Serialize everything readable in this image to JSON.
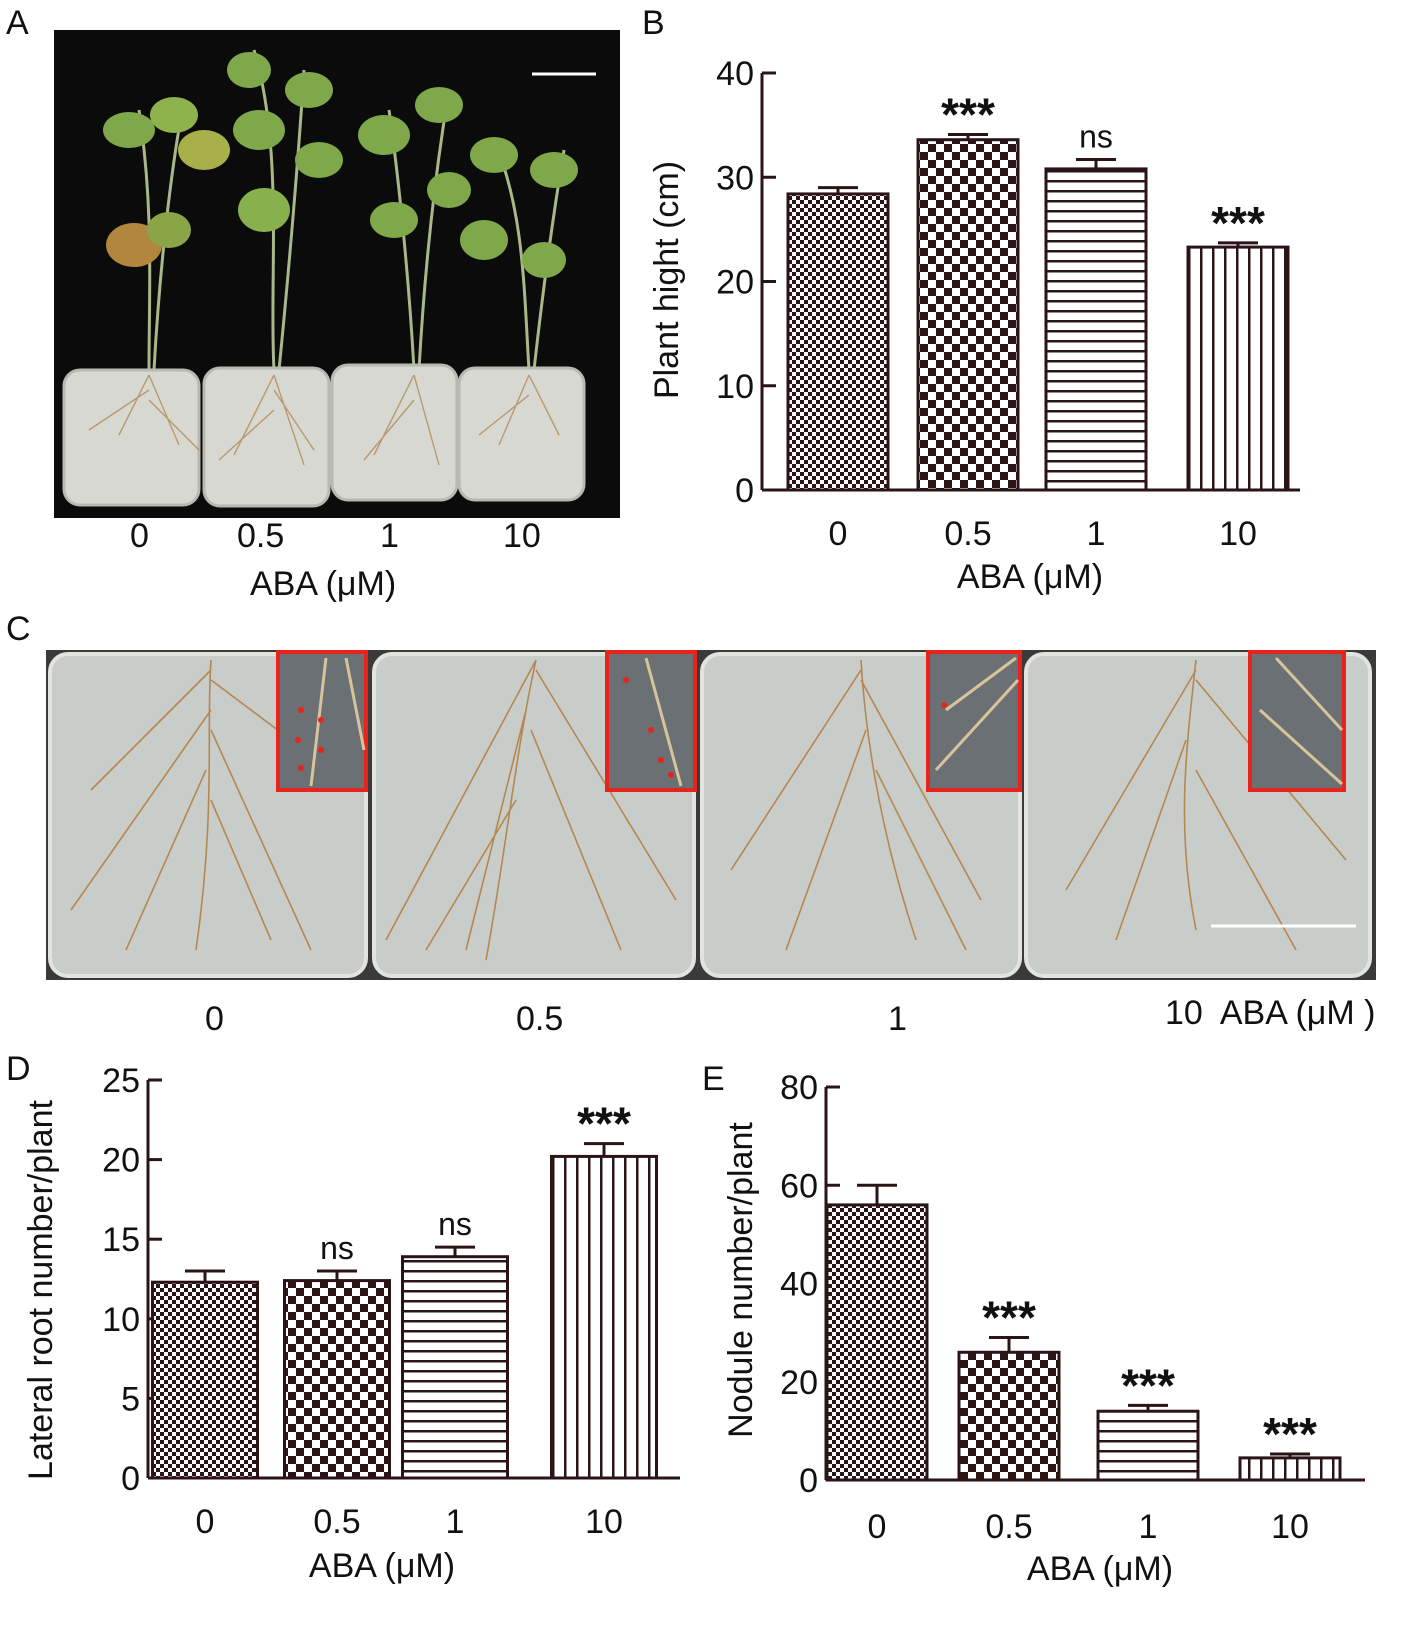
{
  "panel_letters": [
    "A",
    "B",
    "C",
    "D",
    "E"
  ],
  "panel_a": {
    "tick_labels": [
      "0",
      "0.5",
      "1",
      "10"
    ],
    "axis_title": "ABA (μM)"
  },
  "panel_c": {
    "tick_labels": [
      "0",
      "0.5",
      "1",
      "10  ABA (μM )"
    ]
  },
  "colors": {
    "bar_stroke": "#2a1416",
    "pattern_ink": "#2a1416",
    "photo_bg": "#0b0b0b",
    "inset_border": "#e8231c",
    "scale_bar": "#ffffff"
  },
  "chart_data": [
    {
      "panel": "B",
      "type": "bar",
      "categories": [
        "0",
        "0.5",
        "1",
        "10"
      ],
      "values": [
        28.4,
        33.6,
        30.8,
        23.3
      ],
      "errors": [
        0.6,
        0.5,
        0.9,
        0.4
      ],
      "significance": [
        "",
        "***",
        "ns",
        "***"
      ],
      "patterns": [
        "fine-check",
        "coarse-check",
        "horizontal-lines",
        "vertical-lines"
      ],
      "title": "",
      "xlabel": "ABA (μM)",
      "ylabel": "Plant hight (cm)",
      "ylim": [
        0,
        40
      ],
      "yticks": [
        0,
        10,
        20,
        30,
        40
      ],
      "grid": false
    },
    {
      "panel": "D",
      "type": "bar",
      "categories": [
        "0",
        "0.5",
        "1",
        "10"
      ],
      "values": [
        12.3,
        12.4,
        13.9,
        20.2
      ],
      "errors": [
        0.7,
        0.6,
        0.6,
        0.8
      ],
      "significance": [
        "",
        "ns",
        "ns",
        "***"
      ],
      "patterns": [
        "fine-check",
        "coarse-check",
        "horizontal-lines",
        "vertical-lines"
      ],
      "title": "",
      "xlabel": "ABA (μM)",
      "ylabel": "Lateral root number/plant",
      "ylim": [
        0,
        25
      ],
      "yticks": [
        0,
        5,
        10,
        15,
        20,
        25
      ],
      "grid": false
    },
    {
      "panel": "E",
      "type": "bar",
      "categories": [
        "0",
        "0.5",
        "1",
        "10"
      ],
      "values": [
        56,
        26,
        14,
        4.5
      ],
      "errors": [
        4,
        3,
        1.2,
        0.8
      ],
      "significance": [
        "",
        "***",
        "***",
        "***"
      ],
      "patterns": [
        "fine-check",
        "coarse-check",
        "horizontal-lines",
        "vertical-lines"
      ],
      "title": "",
      "xlabel": "ABA (μM)",
      "ylabel": "Nodule number/plant",
      "ylim": [
        0,
        80
      ],
      "yticks": [
        0,
        20,
        40,
        60,
        80
      ],
      "grid": false
    }
  ]
}
